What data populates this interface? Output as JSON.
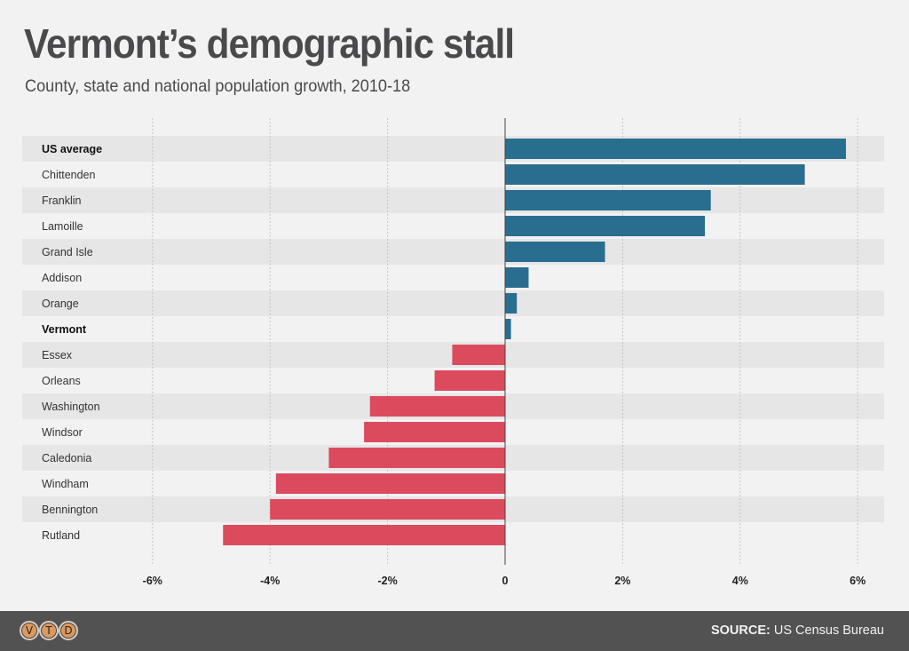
{
  "header": {
    "title": "Vermont’s demographic stall",
    "subtitle": "County, state and national population growth, 2010-18"
  },
  "footer": {
    "logo_letters": [
      "V",
      "T",
      "D"
    ],
    "source_label": "SOURCE:",
    "source_text": "US Census Bureau"
  },
  "colors": {
    "positive": "#2a6e8f",
    "negative": "#dc4a5e",
    "stripe": "#e6e6e6",
    "background": "#f2f2f2"
  },
  "chart_data": {
    "type": "bar",
    "orientation": "horizontal",
    "title": "Vermont’s demographic stall",
    "subtitle": "County, state and national population growth, 2010-18",
    "xlabel": "",
    "ylabel": "",
    "xlim": [
      -6.5,
      6.5
    ],
    "x_ticks": [
      -6,
      -4,
      -2,
      0,
      2,
      4,
      6
    ],
    "x_tick_labels": [
      "-6%",
      "-4%",
      "-2%",
      "0",
      "2%",
      "4%",
      "6%"
    ],
    "grid": "vertical dotted",
    "categories": [
      "US average",
      "Chittenden",
      "Franklin",
      "Lamoille",
      "Grand Isle",
      "Addison",
      "Orange",
      "Vermont",
      "Essex",
      "Orleans",
      "Washington",
      "Windsor",
      "Caledonia",
      "Windham",
      "Bennington",
      "Rutland"
    ],
    "bold_categories": [
      "US average",
      "Vermont"
    ],
    "values": [
      5.8,
      5.1,
      3.5,
      3.4,
      1.7,
      0.4,
      0.2,
      0.1,
      -0.9,
      -1.2,
      -2.3,
      -2.4,
      -3.0,
      -3.9,
      -4.0,
      -4.8
    ],
    "unit": "%"
  }
}
